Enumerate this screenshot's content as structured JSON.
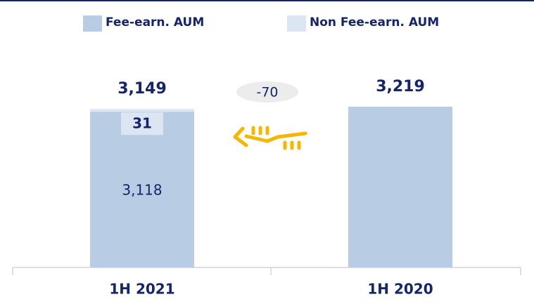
{
  "chart_data": {
    "type": "bar",
    "stacked": true,
    "categories": [
      "1H 2021",
      "1H 2020"
    ],
    "series": [
      {
        "name": "Fee-earn. AUM",
        "color": "#b8cce4",
        "values": [
          3118,
          3219
        ],
        "value_labels": [
          "3,118",
          null
        ]
      },
      {
        "name": "Non Fee-earn. AUM",
        "color": "#dce6f2",
        "values": [
          31,
          null
        ],
        "value_labels": [
          "31",
          null
        ]
      }
    ],
    "totals": [
      3149,
      3219
    ],
    "total_labels": [
      "3,149",
      "3,219"
    ],
    "annotation": "-70"
  }
}
